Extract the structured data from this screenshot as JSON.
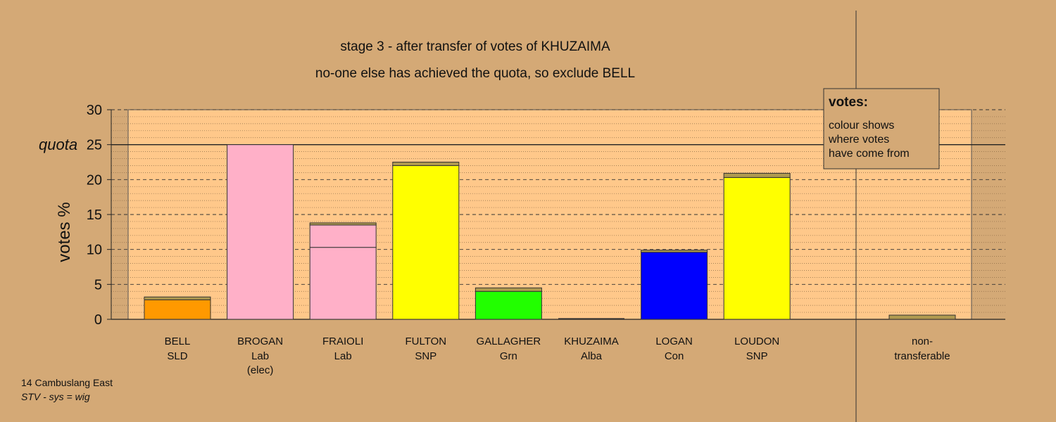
{
  "chart_data": {
    "type": "bar",
    "title": "stage 3 - after transfer of votes of KHUZAIMA",
    "subtitle": "no-one else has achieved the quota, so exclude BELL",
    "ylabel": "votes %",
    "ylim": [
      0,
      30
    ],
    "yticks": [
      0,
      5,
      10,
      15,
      20,
      25,
      30
    ],
    "quota": 25,
    "quota_label": "quota",
    "grid": true,
    "candidates": [
      {
        "name": "BELL",
        "party": "SLD",
        "note": "",
        "color": "#ff9900",
        "segments": [
          {
            "value": 2.8,
            "color": "#ff9900"
          },
          {
            "value": 0.4,
            "color": "#b09a50"
          }
        ]
      },
      {
        "name": "BROGAN",
        "party": "Lab",
        "note": "(elec)",
        "color": "#ffb0c8",
        "segments": [
          {
            "value": 25.0,
            "color": "#ffb0c8"
          }
        ]
      },
      {
        "name": "FRAIOLI",
        "party": "Lab",
        "note": "",
        "color": "#ffb0c8",
        "segments": [
          {
            "value": 10.3,
            "color": "#ffb0c8"
          },
          {
            "value": 3.2,
            "color": "#ffb0c8"
          },
          {
            "value": 0.3,
            "color": "#b09a50"
          }
        ]
      },
      {
        "name": "FULTON",
        "party": "SNP",
        "note": "",
        "color": "#ffff00",
        "segments": [
          {
            "value": 22.0,
            "color": "#ffff00"
          },
          {
            "value": 0.5,
            "color": "#b09a50"
          }
        ]
      },
      {
        "name": "GALLAGHER",
        "party": "Grn",
        "note": "",
        "color": "#22ff00",
        "segments": [
          {
            "value": 4.0,
            "color": "#22ff00"
          },
          {
            "value": 0.5,
            "color": "#b09a50"
          }
        ]
      },
      {
        "name": "KHUZAIMA",
        "party": "Alba",
        "note": "",
        "color": "#b09a50",
        "segments": []
      },
      {
        "name": "LOGAN",
        "party": "Con",
        "note": "",
        "color": "#0000ff",
        "segments": [
          {
            "value": 9.6,
            "color": "#0000ff"
          },
          {
            "value": 0.3,
            "color": "#b09a50"
          }
        ]
      },
      {
        "name": "LOUDON",
        "party": "SNP",
        "note": "",
        "color": "#ffff00",
        "segments": [
          {
            "value": 20.3,
            "color": "#ffff00"
          },
          {
            "value": 0.6,
            "color": "#b09a50"
          }
        ]
      }
    ],
    "nontransferable": {
      "label_line1": "non-",
      "label_line2": "transferable",
      "value": 0.6,
      "color": "#b09a50"
    },
    "legend": {
      "title": "votes:",
      "lines": [
        "colour shows",
        "where votes",
        "have come from"
      ],
      "placement": "top-right"
    }
  },
  "footer": {
    "line1": "14 Cambuslang East",
    "line2": "STV - sys = wig"
  },
  "colors": {
    "background": "#d4a976",
    "plot_background": "#ffc88a"
  }
}
